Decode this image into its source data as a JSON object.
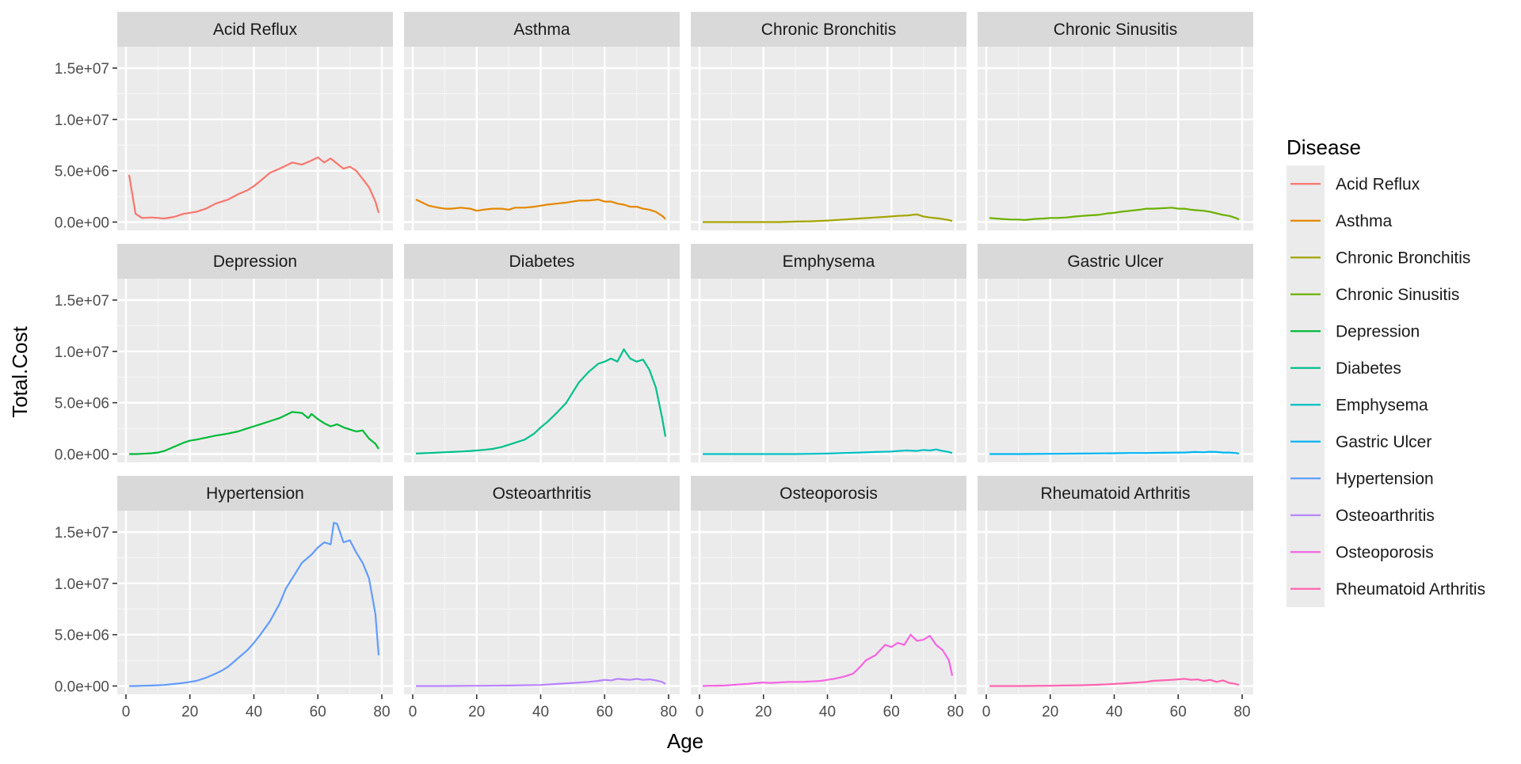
{
  "chart_data": {
    "type": "line",
    "facet_wrap": true,
    "xlabel": "Age",
    "ylabel": "Total.Cost",
    "xlim": [
      0,
      80
    ],
    "ylim": [
      0,
      16000000
    ],
    "x_ticks": [
      0,
      20,
      40,
      60,
      80
    ],
    "x_tick_labels": [
      "0",
      "20",
      "40",
      "60",
      "80"
    ],
    "y_ticks": [
      0,
      5000000,
      10000000,
      15000000
    ],
    "y_tick_labels": [
      "0.0e+00",
      "5.0e+06",
      "1.0e+07",
      "1.5e+07"
    ],
    "grid": true,
    "legend": {
      "title": "Disease",
      "position": "right"
    },
    "panels": [
      {
        "name": "Acid Reflux",
        "color": "#F8766D",
        "x": [
          1,
          3,
          5,
          8,
          10,
          12,
          15,
          18,
          20,
          22,
          25,
          28,
          30,
          32,
          35,
          38,
          40,
          42,
          45,
          48,
          50,
          52,
          55,
          58,
          60,
          62,
          64,
          66,
          68,
          70,
          72,
          74,
          76,
          78,
          79
        ],
        "values": [
          4600000,
          800000,
          400000,
          450000,
          400000,
          350000,
          500000,
          800000,
          900000,
          1000000,
          1300000,
          1800000,
          2000000,
          2200000,
          2700000,
          3100000,
          3500000,
          4000000,
          4800000,
          5200000,
          5500000,
          5800000,
          5600000,
          6000000,
          6300000,
          5800000,
          6200000,
          5700000,
          5200000,
          5400000,
          5000000,
          4200000,
          3400000,
          2000000,
          900000
        ]
      },
      {
        "name": "Asthma",
        "color": "#E58700",
        "x": [
          1,
          3,
          5,
          8,
          10,
          12,
          15,
          18,
          20,
          22,
          25,
          28,
          30,
          32,
          35,
          38,
          40,
          42,
          45,
          48,
          50,
          52,
          55,
          58,
          60,
          62,
          64,
          66,
          68,
          70,
          72,
          74,
          76,
          78,
          79
        ],
        "values": [
          2200000,
          1900000,
          1600000,
          1400000,
          1300000,
          1300000,
          1400000,
          1300000,
          1100000,
          1200000,
          1300000,
          1300000,
          1200000,
          1400000,
          1400000,
          1500000,
          1600000,
          1700000,
          1800000,
          1900000,
          2000000,
          2100000,
          2100000,
          2200000,
          2000000,
          2000000,
          1800000,
          1700000,
          1500000,
          1500000,
          1300000,
          1200000,
          1000000,
          600000,
          300000
        ]
      },
      {
        "name": "Chronic Bronchitis",
        "color": "#A3A500",
        "x": [
          1,
          5,
          10,
          15,
          20,
          25,
          30,
          35,
          40,
          45,
          50,
          55,
          60,
          62,
          65,
          68,
          70,
          72,
          75,
          78,
          79
        ],
        "values": [
          0,
          0,
          0,
          0,
          0,
          0,
          50000,
          80000,
          150000,
          250000,
          350000,
          450000,
          550000,
          600000,
          650000,
          750000,
          550000,
          450000,
          350000,
          200000,
          100000
        ]
      },
      {
        "name": "Chronic Sinusitis",
        "color": "#6BB100",
        "x": [
          1,
          3,
          5,
          8,
          10,
          12,
          15,
          18,
          20,
          22,
          25,
          28,
          30,
          32,
          35,
          38,
          40,
          42,
          45,
          48,
          50,
          52,
          55,
          58,
          60,
          62,
          64,
          66,
          68,
          70,
          72,
          74,
          76,
          78,
          79
        ],
        "values": [
          400000,
          350000,
          300000,
          250000,
          250000,
          200000,
          300000,
          350000,
          400000,
          400000,
          450000,
          550000,
          600000,
          650000,
          700000,
          850000,
          900000,
          1000000,
          1100000,
          1200000,
          1300000,
          1300000,
          1350000,
          1400000,
          1300000,
          1300000,
          1200000,
          1150000,
          1100000,
          1000000,
          850000,
          700000,
          600000,
          400000,
          250000
        ]
      },
      {
        "name": "Depression",
        "color": "#00BA38",
        "x": [
          1,
          3,
          5,
          8,
          10,
          12,
          15,
          18,
          20,
          22,
          25,
          28,
          30,
          32,
          35,
          38,
          40,
          42,
          45,
          48,
          50,
          52,
          55,
          57,
          58,
          60,
          62,
          64,
          66,
          68,
          70,
          72,
          74,
          76,
          78,
          79
        ],
        "values": [
          0,
          0,
          20000,
          80000,
          150000,
          300000,
          700000,
          1100000,
          1300000,
          1400000,
          1600000,
          1800000,
          1900000,
          2000000,
          2200000,
          2500000,
          2700000,
          2900000,
          3200000,
          3500000,
          3800000,
          4100000,
          4000000,
          3500000,
          3900000,
          3400000,
          3000000,
          2700000,
          2900000,
          2600000,
          2400000,
          2200000,
          2300000,
          1500000,
          1000000,
          500000
        ]
      },
      {
        "name": "Diabetes",
        "color": "#00C08B",
        "x": [
          1,
          3,
          5,
          8,
          10,
          12,
          15,
          18,
          20,
          22,
          25,
          28,
          30,
          32,
          35,
          38,
          40,
          42,
          45,
          48,
          50,
          52,
          55,
          58,
          60,
          62,
          64,
          66,
          68,
          70,
          72,
          74,
          76,
          78,
          79
        ],
        "values": [
          50000,
          80000,
          100000,
          150000,
          180000,
          200000,
          250000,
          300000,
          350000,
          400000,
          500000,
          700000,
          900000,
          1100000,
          1400000,
          2000000,
          2600000,
          3100000,
          4000000,
          5000000,
          6000000,
          7000000,
          8000000,
          8800000,
          9000000,
          9300000,
          9000000,
          10200000,
          9300000,
          9000000,
          9200000,
          8200000,
          6500000,
          3500000,
          1700000
        ]
      },
      {
        "name": "Emphysema",
        "color": "#00BFC4",
        "x": [
          1,
          10,
          20,
          30,
          40,
          45,
          50,
          55,
          60,
          62,
          65,
          68,
          70,
          72,
          74,
          76,
          78,
          79
        ],
        "values": [
          0,
          0,
          0,
          0,
          50000,
          100000,
          150000,
          200000,
          250000,
          300000,
          350000,
          300000,
          400000,
          350000,
          450000,
          300000,
          200000,
          100000
        ]
      },
      {
        "name": "Gastric Ulcer",
        "color": "#00B4F0",
        "x": [
          1,
          10,
          20,
          30,
          40,
          45,
          50,
          55,
          60,
          62,
          65,
          68,
          70,
          72,
          74,
          76,
          78,
          79
        ],
        "values": [
          0,
          0,
          20000,
          50000,
          80000,
          100000,
          100000,
          120000,
          150000,
          150000,
          200000,
          180000,
          220000,
          200000,
          150000,
          150000,
          100000,
          50000
        ]
      },
      {
        "name": "Hypertension",
        "color": "#619CFF",
        "x": [
          1,
          3,
          5,
          8,
          10,
          12,
          15,
          18,
          20,
          22,
          25,
          28,
          30,
          32,
          35,
          38,
          40,
          42,
          45,
          48,
          50,
          52,
          55,
          58,
          60,
          62,
          64,
          65,
          66,
          68,
          70,
          72,
          74,
          76,
          78,
          79
        ],
        "values": [
          0,
          0,
          20000,
          50000,
          80000,
          100000,
          200000,
          300000,
          400000,
          500000,
          800000,
          1200000,
          1500000,
          1900000,
          2700000,
          3500000,
          4200000,
          5000000,
          6300000,
          8000000,
          9500000,
          10500000,
          12000000,
          12800000,
          13500000,
          14000000,
          13800000,
          15900000,
          15800000,
          14000000,
          14200000,
          13000000,
          12000000,
          10500000,
          7000000,
          3000000
        ]
      },
      {
        "name": "Osteoarthritis",
        "color": "#B983FF",
        "x": [
          1,
          10,
          20,
          30,
          40,
          45,
          50,
          55,
          58,
          60,
          62,
          64,
          66,
          68,
          70,
          72,
          74,
          76,
          78,
          79
        ],
        "values": [
          0,
          0,
          20000,
          50000,
          100000,
          200000,
          300000,
          400000,
          500000,
          600000,
          550000,
          700000,
          650000,
          600000,
          700000,
          600000,
          650000,
          550000,
          400000,
          200000
        ]
      },
      {
        "name": "Osteoporosis",
        "color": "#F564E3",
        "x": [
          1,
          3,
          5,
          8,
          10,
          12,
          15,
          18,
          20,
          22,
          25,
          28,
          30,
          32,
          35,
          38,
          40,
          42,
          45,
          48,
          50,
          52,
          55,
          58,
          60,
          62,
          64,
          66,
          68,
          70,
          72,
          74,
          76,
          78,
          79
        ],
        "values": [
          0,
          20000,
          30000,
          50000,
          100000,
          150000,
          200000,
          300000,
          350000,
          300000,
          350000,
          400000,
          400000,
          400000,
          450000,
          500000,
          600000,
          700000,
          900000,
          1200000,
          1800000,
          2500000,
          3000000,
          4000000,
          3800000,
          4200000,
          4000000,
          5000000,
          4400000,
          4500000,
          4900000,
          4000000,
          3500000,
          2500000,
          1000000
        ]
      },
      {
        "name": "Rheumatoid Arthritis",
        "color": "#FF64B0",
        "x": [
          1,
          10,
          20,
          30,
          35,
          40,
          45,
          50,
          52,
          55,
          58,
          60,
          62,
          64,
          66,
          68,
          70,
          72,
          74,
          76,
          78,
          79
        ],
        "values": [
          0,
          0,
          30000,
          80000,
          120000,
          200000,
          300000,
          400000,
          500000,
          550000,
          600000,
          650000,
          700000,
          600000,
          650000,
          500000,
          600000,
          400000,
          550000,
          300000,
          200000,
          100000
        ]
      }
    ]
  }
}
